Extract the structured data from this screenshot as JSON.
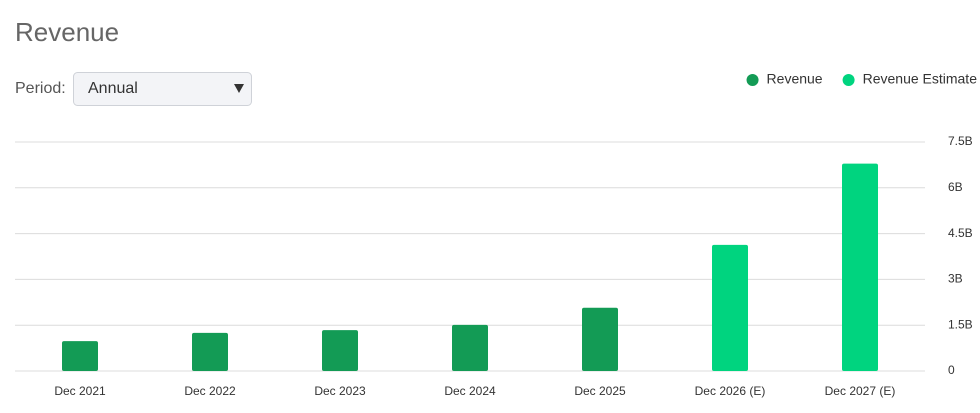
{
  "page": {
    "period_label": "Period:",
    "period_value": "Annual"
  },
  "chart_data": {
    "type": "bar",
    "title": "Revenue",
    "categories": [
      "Dec 2021",
      "Dec 2022",
      "Dec 2023",
      "Dec 2024",
      "Dec 2025",
      "Dec 2026 (E)",
      "Dec 2027 (E)"
    ],
    "series": [
      {
        "name": "Revenue",
        "color": "#139b55",
        "values": [
          980000000,
          1250000000,
          1340000000,
          1510000000,
          2070000000,
          null,
          null
        ]
      },
      {
        "name": "Revenue Estimate",
        "color": "#00d47f",
        "values": [
          null,
          null,
          null,
          null,
          null,
          4130000000,
          6790000000
        ]
      }
    ],
    "ylim": [
      0,
      7500000000
    ],
    "yticks": [
      {
        "value": 0,
        "label": "0"
      },
      {
        "value": 1500000000,
        "label": "1.5B"
      },
      {
        "value": 3000000000,
        "label": "3B"
      },
      {
        "value": 4500000000,
        "label": "4.5B"
      },
      {
        "value": 6000000000,
        "label": "6B"
      },
      {
        "value": 7500000000,
        "label": "7.5B"
      }
    ],
    "grid": true
  }
}
